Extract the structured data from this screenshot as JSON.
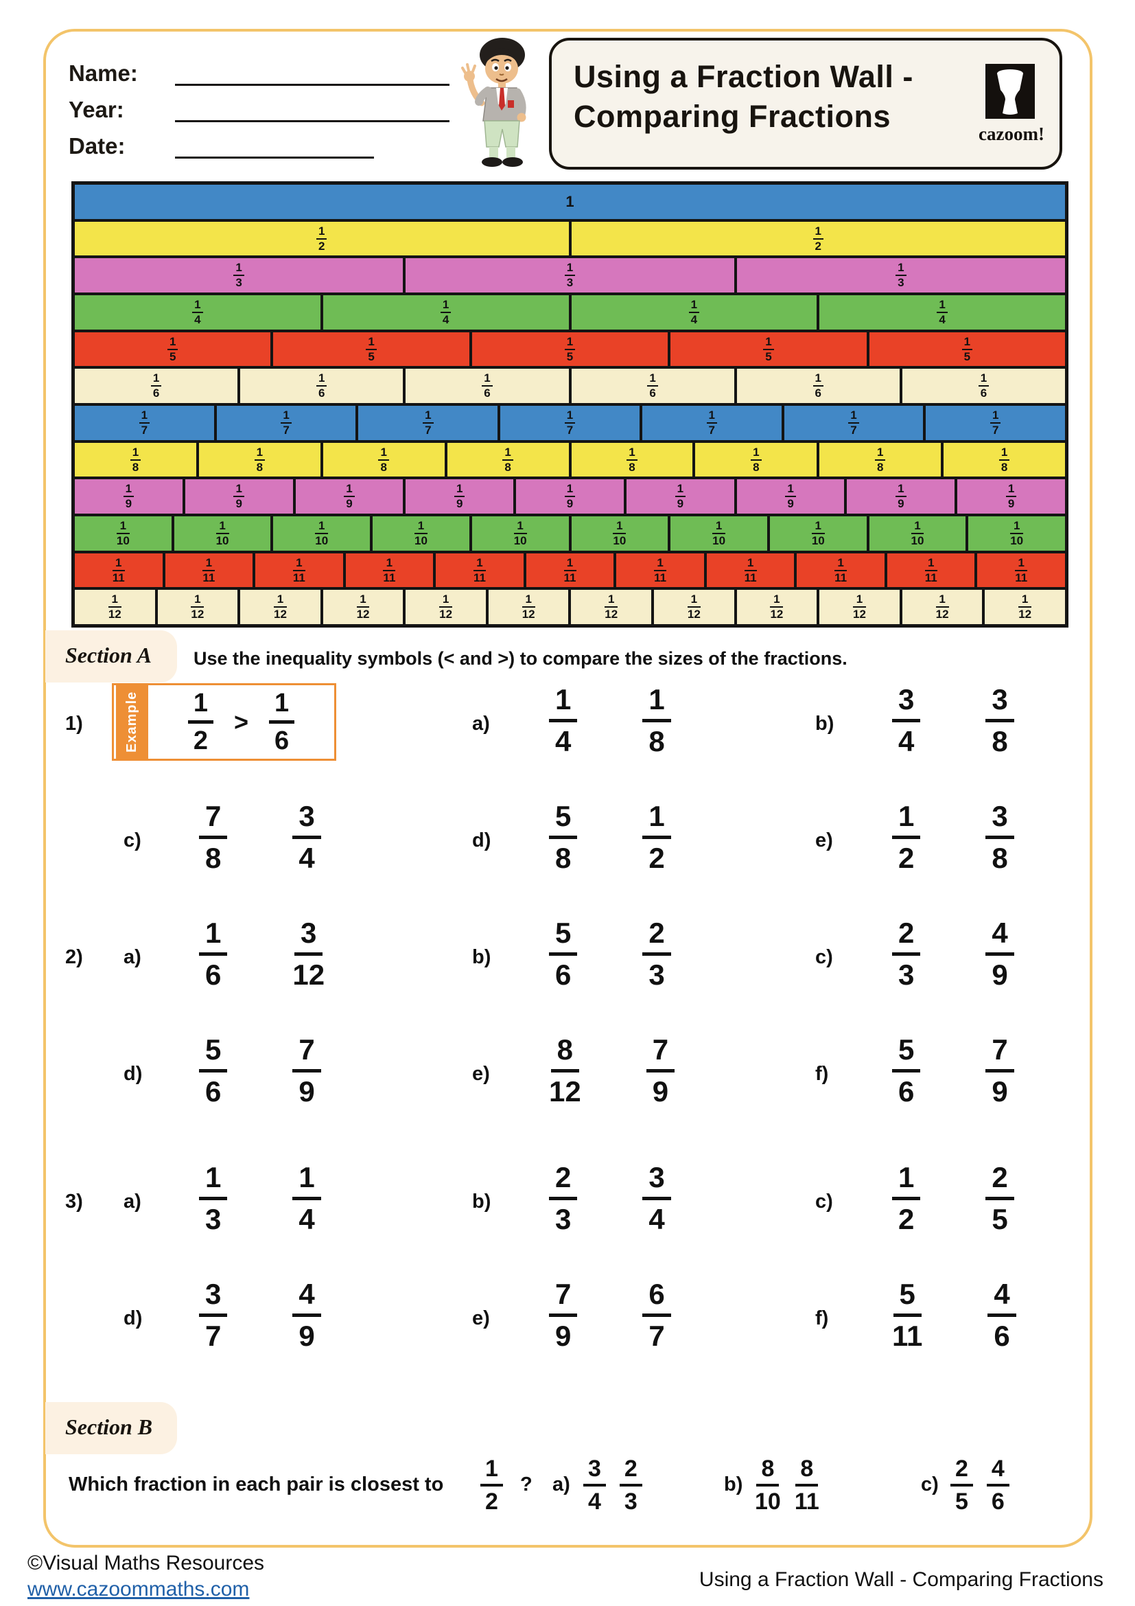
{
  "header": {
    "name_label": "Name:",
    "year_label": "Year:",
    "date_label": "Date:",
    "title_line1": "Using a Fraction Wall -",
    "title_line2": "Comparing Fractions",
    "logo_text": "cazoom!"
  },
  "colors": {
    "page_border": "#f3c46a",
    "wall_palette": [
      "#4288c6",
      "#f3e44a",
      "#d677bd",
      "#6fbc55",
      "#e94227",
      "#f6eecb"
    ],
    "example_orange": "#ee8f35",
    "section_box_bg": "#fcf1e2",
    "title_box_bg": "#f7f3eb",
    "link_blue": "#2060a8"
  },
  "fraction_wall": {
    "rows": [
      {
        "whole": "1",
        "count": 1,
        "color_index": 0
      },
      {
        "numerator": "1",
        "denominator": "2",
        "count": 2,
        "color_index": 1
      },
      {
        "numerator": "1",
        "denominator": "3",
        "count": 3,
        "color_index": 2
      },
      {
        "numerator": "1",
        "denominator": "4",
        "count": 4,
        "color_index": 3
      },
      {
        "numerator": "1",
        "denominator": "5",
        "count": 5,
        "color_index": 4
      },
      {
        "numerator": "1",
        "denominator": "6",
        "count": 6,
        "color_index": 5
      },
      {
        "numerator": "1",
        "denominator": "7",
        "count": 7,
        "color_index": 0
      },
      {
        "numerator": "1",
        "denominator": "8",
        "count": 8,
        "color_index": 1
      },
      {
        "numerator": "1",
        "denominator": "9",
        "count": 9,
        "color_index": 2
      },
      {
        "numerator": "1",
        "denominator": "10",
        "count": 10,
        "color_index": 3
      },
      {
        "numerator": "1",
        "denominator": "11",
        "count": 11,
        "color_index": 4
      },
      {
        "numerator": "1",
        "denominator": "12",
        "count": 12,
        "color_index": 5
      }
    ]
  },
  "section_a": {
    "heading": "Section A",
    "instructions": "Use the inequality symbols (< and >) to compare the sizes of the fractions.",
    "example": {
      "tab": "Example",
      "left": {
        "n": "1",
        "d": "2"
      },
      "symbol": ">",
      "right": {
        "n": "1",
        "d": "6"
      }
    },
    "rows": [
      {
        "number": "1)",
        "items": [
          {
            "example": true
          },
          {
            "letter": "a)",
            "left": {
              "n": "1",
              "d": "4"
            },
            "right": {
              "n": "1",
              "d": "8"
            }
          },
          {
            "letter": "b)",
            "left": {
              "n": "3",
              "d": "4"
            },
            "right": {
              "n": "3",
              "d": "8"
            }
          }
        ]
      },
      {
        "number": "",
        "items": [
          {
            "letter": "c)",
            "left": {
              "n": "7",
              "d": "8"
            },
            "right": {
              "n": "3",
              "d": "4"
            }
          },
          {
            "letter": "d)",
            "left": {
              "n": "5",
              "d": "8"
            },
            "right": {
              "n": "1",
              "d": "2"
            }
          },
          {
            "letter": "e)",
            "left": {
              "n": "1",
              "d": "2"
            },
            "right": {
              "n": "3",
              "d": "8"
            }
          }
        ]
      },
      {
        "number": "2)",
        "items": [
          {
            "letter": "a)",
            "left": {
              "n": "1",
              "d": "6"
            },
            "right": {
              "n": "3",
              "d": "12"
            }
          },
          {
            "letter": "b)",
            "left": {
              "n": "5",
              "d": "6"
            },
            "right": {
              "n": "2",
              "d": "3"
            }
          },
          {
            "letter": "c)",
            "left": {
              "n": "2",
              "d": "3"
            },
            "right": {
              "n": "4",
              "d": "9"
            }
          }
        ]
      },
      {
        "number": "",
        "items": [
          {
            "letter": "d)",
            "left": {
              "n": "5",
              "d": "6"
            },
            "right": {
              "n": "7",
              "d": "9"
            }
          },
          {
            "letter": "e)",
            "left": {
              "n": "8",
              "d": "12"
            },
            "right": {
              "n": "7",
              "d": "9"
            }
          },
          {
            "letter": "f)",
            "left": {
              "n": "5",
              "d": "6"
            },
            "right": {
              "n": "7",
              "d": "9"
            }
          }
        ]
      },
      {
        "number": "3)",
        "items": [
          {
            "letter": "a)",
            "left": {
              "n": "1",
              "d": "3"
            },
            "right": {
              "n": "1",
              "d": "4"
            }
          },
          {
            "letter": "b)",
            "left": {
              "n": "2",
              "d": "3"
            },
            "right": {
              "n": "3",
              "d": "4"
            }
          },
          {
            "letter": "c)",
            "left": {
              "n": "1",
              "d": "2"
            },
            "right": {
              "n": "2",
              "d": "5"
            }
          }
        ]
      },
      {
        "number": "",
        "items": [
          {
            "letter": "d)",
            "left": {
              "n": "3",
              "d": "7"
            },
            "right": {
              "n": "4",
              "d": "9"
            }
          },
          {
            "letter": "e)",
            "left": {
              "n": "7",
              "d": "9"
            },
            "right": {
              "n": "6",
              "d": "7"
            }
          },
          {
            "letter": "f)",
            "left": {
              "n": "5",
              "d": "11"
            },
            "right": {
              "n": "4",
              "d": "6"
            }
          }
        ]
      }
    ]
  },
  "section_b": {
    "heading": "Section B",
    "question_prefix": "Which fraction in each pair is closest to",
    "target": {
      "n": "1",
      "d": "2"
    },
    "question_mark": "?",
    "items": [
      {
        "letter": "a)",
        "left": {
          "n": "3",
          "d": "4"
        },
        "right": {
          "n": "2",
          "d": "3"
        }
      },
      {
        "letter": "b)",
        "left": {
          "n": "8",
          "d": "10"
        },
        "right": {
          "n": "8",
          "d": "11"
        }
      },
      {
        "letter": "c)",
        "left": {
          "n": "2",
          "d": "5"
        },
        "right": {
          "n": "4",
          "d": "6"
        }
      }
    ]
  },
  "footer": {
    "copyright": "©Visual Maths Resources",
    "website": "www.cazoommaths.com",
    "doc_title": "Using a Fraction Wall - Comparing Fractions"
  }
}
